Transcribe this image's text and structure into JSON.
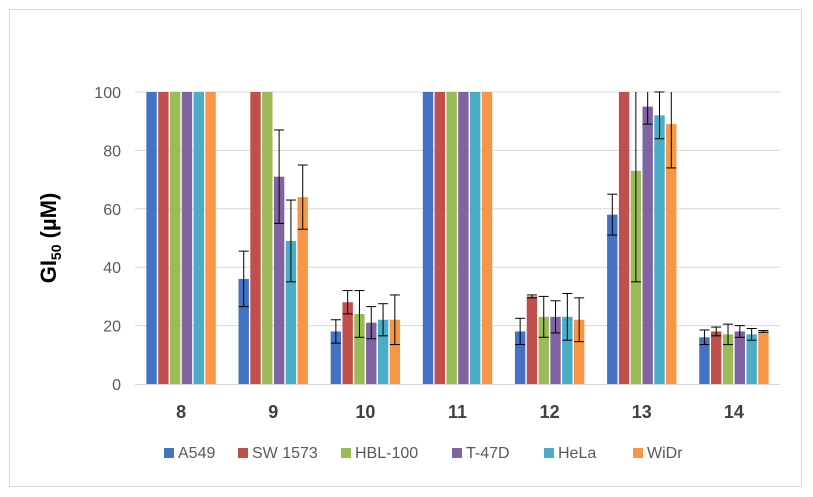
{
  "chart_data": {
    "type": "bar",
    "title": "",
    "xlabel": "",
    "ylabel": "GI50 (µM)",
    "ylabel_main": "GI",
    "ylabel_sub": "50",
    "ylabel_unit": " (µM)",
    "ylim": [
      0,
      100
    ],
    "yticks": [
      0,
      20,
      40,
      60,
      80,
      100
    ],
    "ytick_labels": [
      "0",
      "20",
      "40",
      "60",
      "80",
      "100"
    ],
    "grid": true,
    "legend_position": "bottom",
    "categories": [
      "8",
      "9",
      "10",
      "11",
      "12",
      "13",
      "14"
    ],
    "series": [
      {
        "name": "A549",
        "color": "#4472c4",
        "values": [
          100,
          36,
          18,
          100,
          18,
          58,
          16
        ],
        "errors": [
          null,
          9.5,
          4,
          null,
          4.5,
          7,
          2.5
        ]
      },
      {
        "name": "SW 1573",
        "color": "#c0504d",
        "values": [
          100,
          100,
          28,
          100,
          30,
          100,
          18
        ],
        "errors": [
          null,
          null,
          4,
          null,
          0.5,
          null,
          1.5
        ]
      },
      {
        "name": "HBL-100",
        "color": "#9bbb59",
        "values": [
          100,
          100,
          24,
          100,
          23,
          73,
          17
        ],
        "errors": [
          null,
          null,
          8,
          null,
          7,
          38,
          3.5
        ]
      },
      {
        "name": "T-47D",
        "color": "#8064a2",
        "values": [
          100,
          71,
          21,
          100,
          23,
          95,
          18
        ],
        "errors": [
          null,
          16,
          5.5,
          null,
          5.5,
          6,
          2
        ]
      },
      {
        "name": "HeLa",
        "color": "#4bacc6",
        "values": [
          100,
          49,
          22,
          100,
          23,
          92,
          17
        ],
        "errors": [
          null,
          14,
          5.5,
          null,
          8,
          8,
          2
        ]
      },
      {
        "name": "WiDr",
        "color": "#f79646",
        "values": [
          100,
          64,
          22,
          100,
          22,
          89,
          18
        ],
        "errors": [
          null,
          11,
          8.5,
          null,
          7.5,
          15,
          0.3
        ]
      }
    ],
    "gridline_color": "#d9d9d9",
    "errorbar_color": "#000000"
  }
}
